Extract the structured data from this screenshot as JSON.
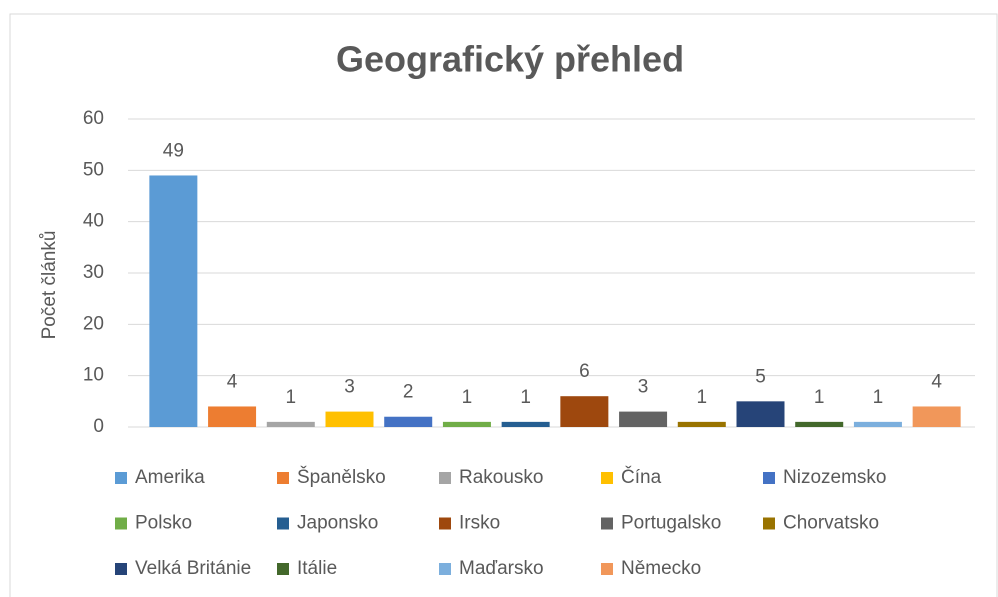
{
  "chart_data": {
    "type": "bar",
    "title": "Geografický přehled",
    "y_label": "Počet článků",
    "ylim": [
      0,
      60
    ],
    "yticks": [
      0,
      10,
      20,
      30,
      40,
      50,
      60
    ],
    "grid": true,
    "series": [
      {
        "name": "Amerika",
        "color": "#5b9bd5",
        "values": [
          49
        ]
      },
      {
        "name": "Španělsko",
        "color": "#ed7d31",
        "values": [
          4
        ]
      },
      {
        "name": "Rakousko",
        "color": "#a5a5a5",
        "values": [
          1
        ]
      },
      {
        "name": "Čína",
        "color": "#ffc000",
        "values": [
          3
        ]
      },
      {
        "name": "Nizozemsko",
        "color": "#4472c4",
        "values": [
          2
        ]
      },
      {
        "name": "Polsko",
        "color": "#70ad47",
        "values": [
          1
        ]
      },
      {
        "name": "Japonsko",
        "color": "#255e91",
        "values": [
          1
        ]
      },
      {
        "name": "Irsko",
        "color": "#9e480e",
        "values": [
          6
        ]
      },
      {
        "name": "Portugalsko",
        "color": "#636363",
        "values": [
          3
        ]
      },
      {
        "name": "Chorvatsko",
        "color": "#997300",
        "values": [
          1
        ]
      },
      {
        "name": "Velká Británie",
        "color": "#264478",
        "values": [
          5
        ]
      },
      {
        "name": "Itálie",
        "color": "#43682b",
        "values": [
          1
        ]
      },
      {
        "name": "Maďarsko",
        "color": "#7cafdd",
        "values": [
          1
        ]
      },
      {
        "name": "Německo",
        "color": "#f1975a",
        "values": [
          4
        ]
      }
    ]
  }
}
